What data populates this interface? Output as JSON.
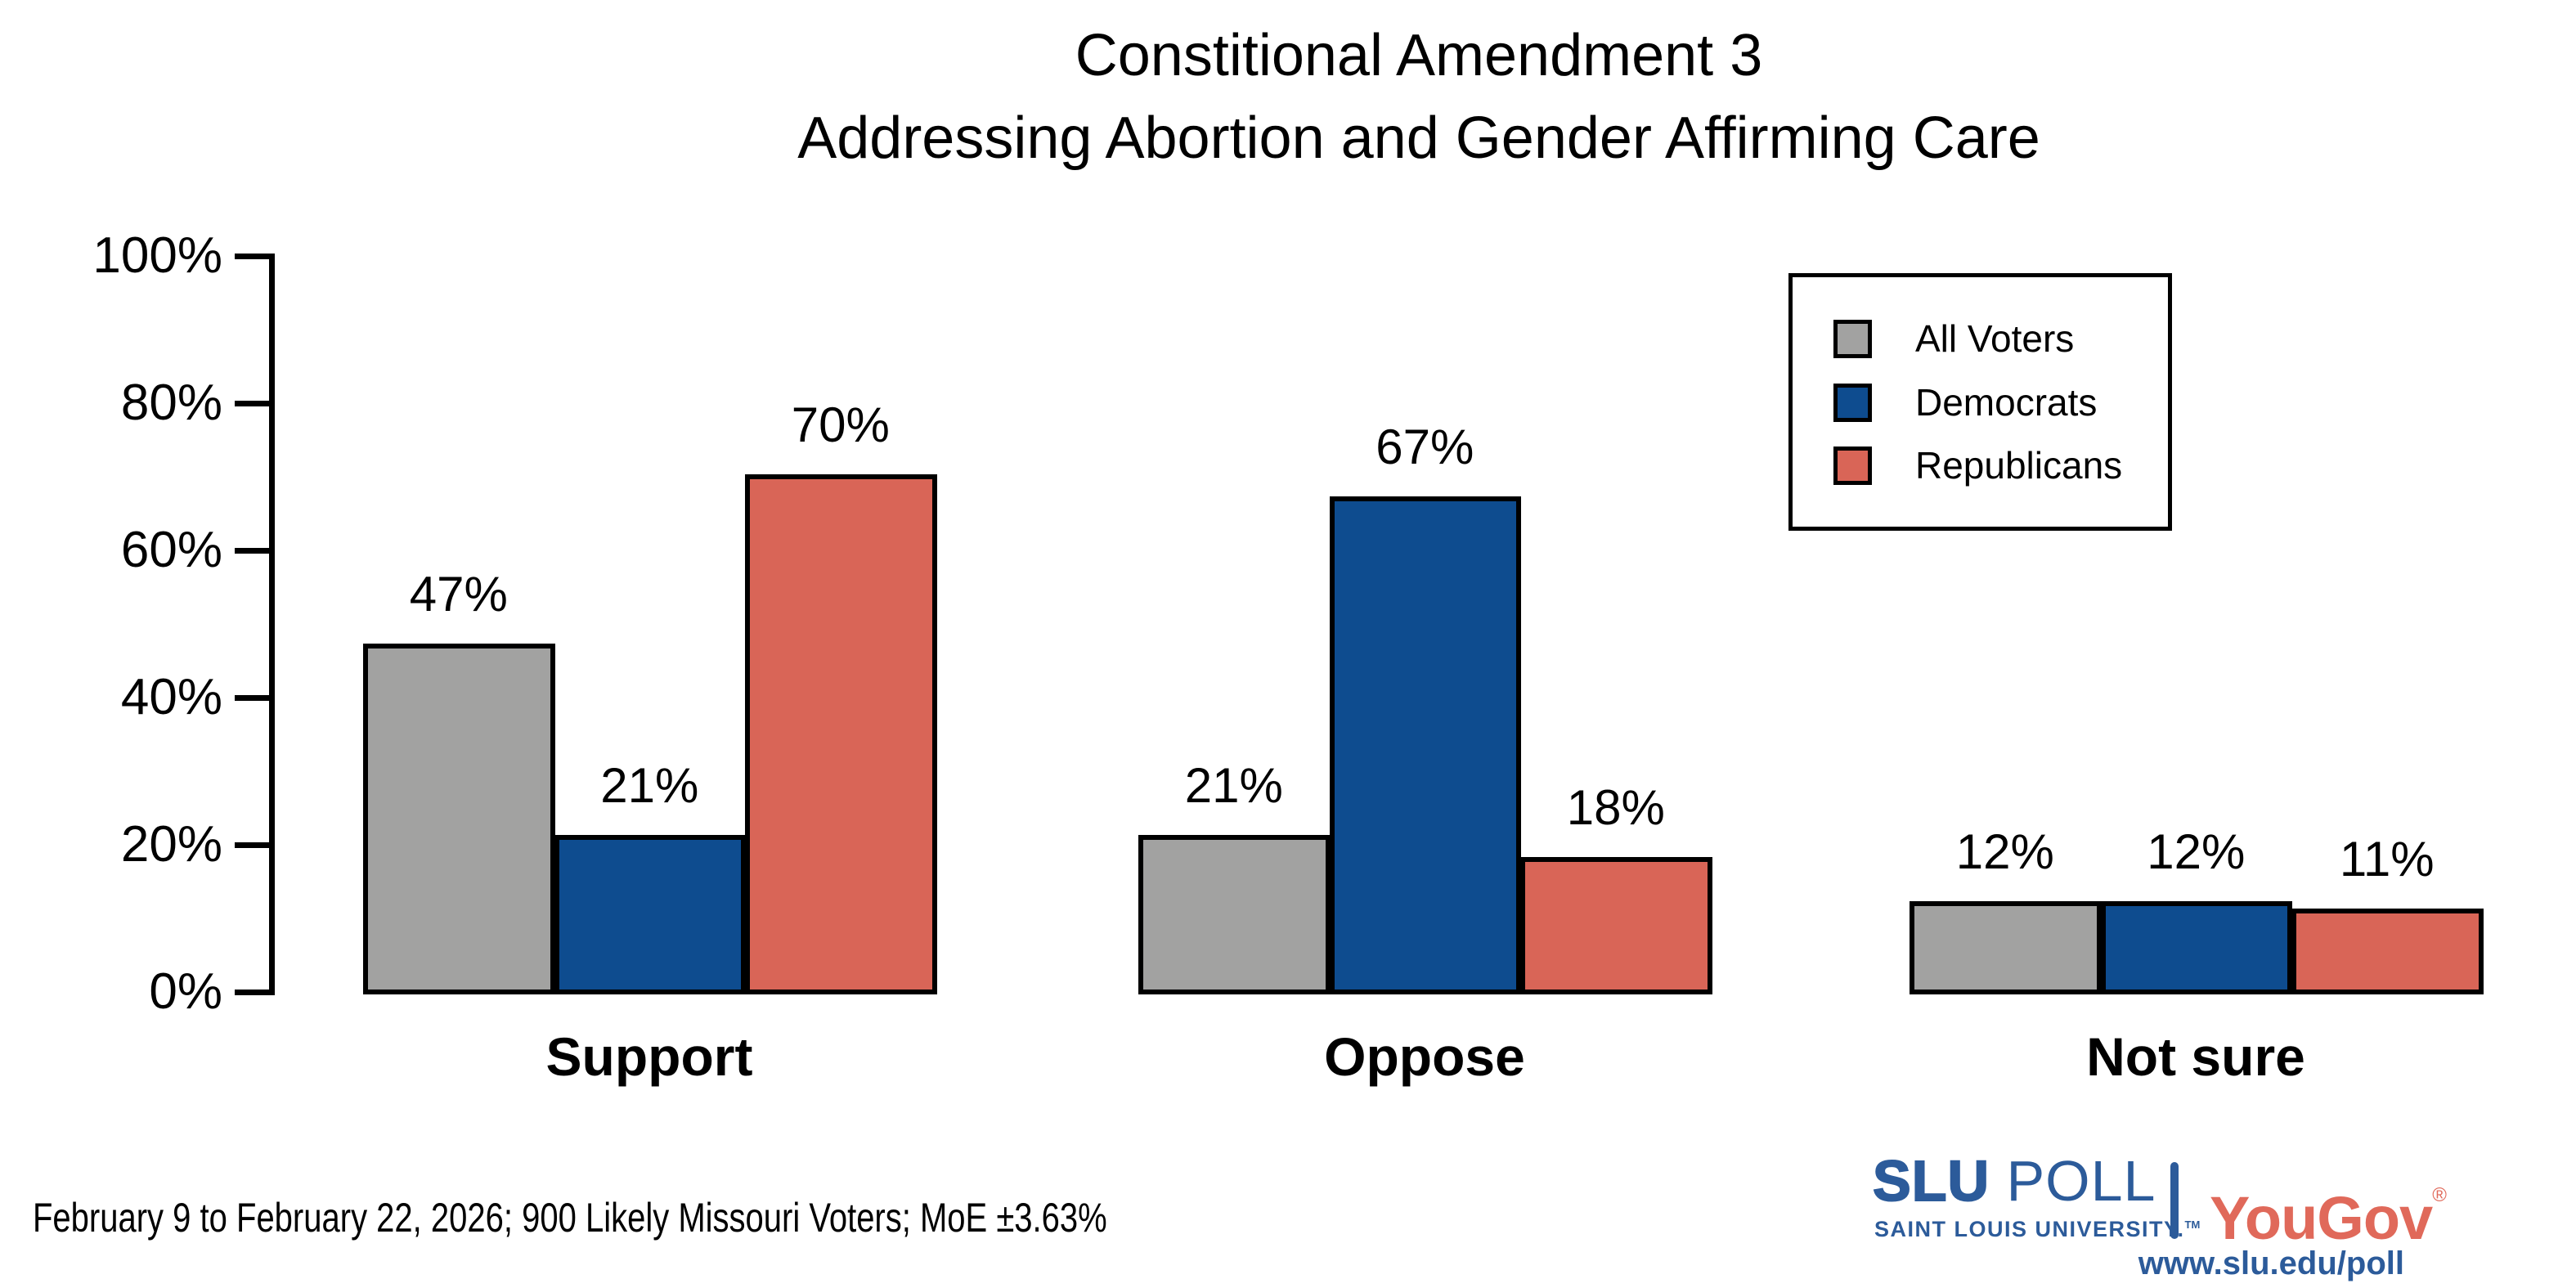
{
  "title": {
    "line1": "Constitional Amendment 3",
    "line2": "Addressing Abortion and Gender Affirming Care"
  },
  "chart_data": {
    "type": "bar",
    "title": "Constitional Amendment 3 Addressing Abortion and Gender Affirming Care",
    "categories": [
      "Support",
      "Oppose",
      "Not sure"
    ],
    "series": [
      {
        "name": "All Voters",
        "color": "#a2a2a1",
        "values": [
          47,
          21,
          12
        ]
      },
      {
        "name": "Democrats",
        "color": "#0e4c8f",
        "values": [
          21,
          67,
          12
        ]
      },
      {
        "name": "Republicans",
        "color": "#d96557",
        "values": [
          70,
          18,
          11
        ]
      }
    ],
    "value_suffix": "%",
    "xlabel": "",
    "ylabel": "",
    "ylim": [
      0,
      100
    ],
    "yticks": [
      {
        "label": "0%",
        "value": 0
      },
      {
        "label": "20%",
        "value": 20
      },
      {
        "label": "40%",
        "value": 40
      },
      {
        "label": "60%",
        "value": 60
      },
      {
        "label": "80%",
        "value": 80
      },
      {
        "label": "100%",
        "value": 100
      }
    ],
    "grid": false,
    "legend_position": "top-right",
    "bar_border_color": "#000000"
  },
  "footer": {
    "note": "February 9 to February 22, 2026; 900 Likely Missouri Voters; MoE ±3.63%"
  },
  "branding": {
    "slu": "SLU",
    "poll": " POLL",
    "university": "SAINT LOUIS UNIVERSITY.",
    "trademark": "TM",
    "partner": "YouGov",
    "registered": "®",
    "url": "www.slu.edu/poll",
    "slu_blue": "#2c5b9a",
    "yougov_red": "#e0695a"
  }
}
